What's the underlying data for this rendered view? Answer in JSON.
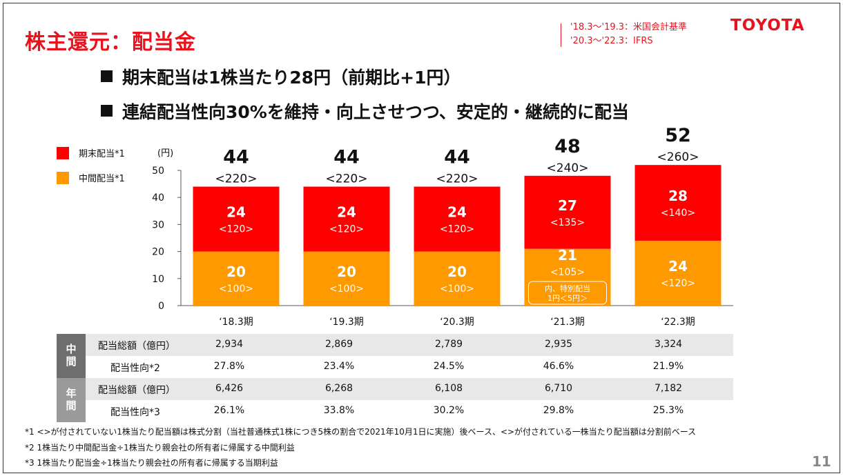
{
  "header": {
    "title": "株主還元：配当金",
    "accounting_notes": [
      "'18.3～'19.3：米国会計基準",
      "'20.3～'22.3：IFRS"
    ],
    "logo": "TOYOTA"
  },
  "bullets": [
    "期末配当は1株当たり28円（前期比+1円）",
    "連結配当性向30%を維持・向上させつつ、安定的・継続的に配当"
  ],
  "colors": {
    "accent": "#e8121c",
    "year_end": "#ff0000",
    "interim": "#ff9900",
    "group_interim": "#6e6e6e",
    "group_annual": "#9a9a9a"
  },
  "chart_data": {
    "type": "bar",
    "stacked": true,
    "categories": [
      "‘18.3期",
      "‘19.3期",
      "‘20.3期",
      "‘21.3期",
      "‘22.3期"
    ],
    "series": [
      {
        "name": "中間配当*1",
        "values": [
          20,
          20,
          20,
          21,
          24
        ],
        "labels": [
          "<100>",
          "<100>",
          "<100>",
          "<105>",
          "<120>"
        ]
      },
      {
        "name": "期末配当*1",
        "values": [
          24,
          24,
          24,
          27,
          28
        ],
        "labels": [
          "<120>",
          "<120>",
          "<120>",
          "<135>",
          "<140>"
        ]
      }
    ],
    "totals": [
      44,
      44,
      44,
      48,
      52
    ],
    "total_labels": [
      "<220>",
      "<220>",
      "<220>",
      "<240>",
      "<260>"
    ],
    "ylabel": "(円)",
    "ylim": [
      0,
      50
    ],
    "yticks": [
      0,
      10,
      20,
      30,
      40,
      50
    ],
    "annotation": {
      "category_index": 3,
      "lines": [
        "内、特別配当",
        "1円＜5円＞"
      ]
    },
    "legend_position": "top-left"
  },
  "table": {
    "groups": [
      {
        "label": "中間",
        "rows": [
          {
            "label": "配当総額（億円）",
            "values": [
              "2,934",
              "2,869",
              "2,789",
              "2,935",
              "3,324"
            ]
          },
          {
            "label": "配当性向*2",
            "values": [
              "27.8%",
              "23.4%",
              "24.5%",
              "46.6%",
              "21.9%"
            ]
          }
        ]
      },
      {
        "label": "年間",
        "rows": [
          {
            "label": "配当総額（億円）",
            "values": [
              "6,426",
              "6,268",
              "6,108",
              "6,710",
              "7,182"
            ]
          },
          {
            "label": "配当性向*3",
            "values": [
              "26.1%",
              "33.8%",
              "30.2%",
              "29.8%",
              "25.3%"
            ]
          }
        ]
      }
    ]
  },
  "footnotes": [
    "*1 <>が付されていない1株当たり配当額は株式分割（当社普通株式1株につき5株の割合で2021年10月1日に実施）後ベース、<>が付されている一株当たり配当額は分割前ベース",
    "*2 1株当たり中間配当金÷1株当たり親会社の所有者に帰属する中間利益",
    "*3 1株当たり配当金÷1株当たり親会社の所有者に帰属する当期利益"
  ],
  "page_number": "11"
}
